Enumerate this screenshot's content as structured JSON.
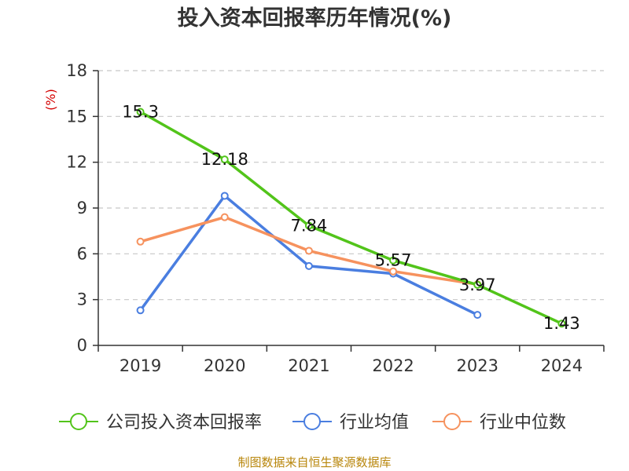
{
  "header": {
    "title": "投入资本回报率历年情况(%)"
  },
  "footer": {
    "source": "制图数据来自恒生聚源数据库"
  },
  "chart_data": {
    "type": "line",
    "title": "投入资本回报率历年情况(%)",
    "ylabel": "(%)",
    "xlabel": "",
    "categories": [
      "2019",
      "2020",
      "2021",
      "2022",
      "2023",
      "2024"
    ],
    "ylim": [
      0,
      18
    ],
    "yticks": [
      0,
      3,
      6,
      9,
      12,
      15,
      18
    ],
    "grid": true,
    "legend_position": "bottom",
    "series": [
      {
        "name": "公司投入资本回报率",
        "color": "#52c41a",
        "values": [
          15.3,
          12.18,
          7.84,
          5.57,
          3.97,
          1.43
        ],
        "labels": [
          "15.3",
          "12.18",
          "7.84",
          "5.57",
          "3.97",
          "1.43"
        ]
      },
      {
        "name": "行业均值",
        "color": "#4a7ee0",
        "values": [
          2.3,
          9.8,
          5.2,
          4.7,
          2.0,
          null
        ]
      },
      {
        "name": "行业中位数",
        "color": "#f6925e",
        "values": [
          6.8,
          8.4,
          6.2,
          4.85,
          4.0,
          null
        ]
      }
    ]
  }
}
